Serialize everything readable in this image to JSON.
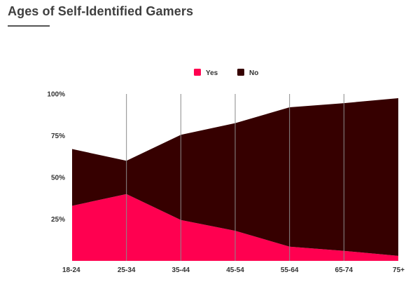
{
  "page": {
    "title": "Ages of Self-Identified Gamers"
  },
  "chart_data": {
    "type": "area",
    "stacked": true,
    "categories": [
      "18-24",
      "25-34",
      "35-44",
      "45-54",
      "55-64",
      "65-74",
      "75+"
    ],
    "series": [
      {
        "name": "Yes",
        "color": "#ff0050",
        "values": [
          33,
          40,
          24.5,
          18,
          8.5,
          6,
          3
        ]
      },
      {
        "name": "No",
        "color": "#360000",
        "values": [
          34,
          20,
          51,
          64.5,
          83.5,
          88.5,
          94.5
        ]
      }
    ],
    "y_ticks": [
      "25%",
      "50%",
      "75%",
      "100%"
    ],
    "y_tick_values": [
      25,
      50,
      75,
      100
    ],
    "ylim": [
      0,
      100
    ],
    "legend_position": "top-center",
    "vertical_gridlines": true,
    "title": "Ages of Self-Identified Gamers"
  }
}
